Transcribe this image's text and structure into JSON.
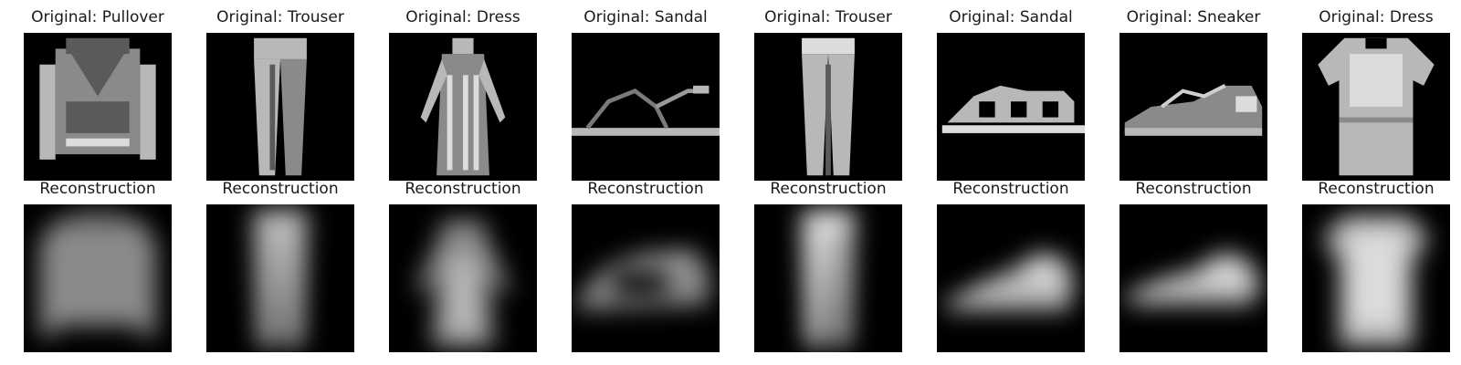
{
  "columns": [
    {
      "original_title": "Original: Pullover",
      "reconstruction_title": "Reconstruction",
      "item": "pullover"
    },
    {
      "original_title": "Original: Trouser",
      "reconstruction_title": "Reconstruction",
      "item": "trouser"
    },
    {
      "original_title": "Original: Dress",
      "reconstruction_title": "Reconstruction",
      "item": "dress"
    },
    {
      "original_title": "Original: Sandal",
      "reconstruction_title": "Reconstruction",
      "item": "sandal"
    },
    {
      "original_title": "Original: Trouser",
      "reconstruction_title": "Reconstruction",
      "item": "trouser"
    },
    {
      "original_title": "Original: Sandal",
      "reconstruction_title": "Reconstruction",
      "item": "sandal"
    },
    {
      "original_title": "Original: Sneaker",
      "reconstruction_title": "Reconstruction",
      "item": "sneaker"
    },
    {
      "original_title": "Original: Dress",
      "reconstruction_title": "Reconstruction",
      "item": "dress"
    }
  ],
  "colors": {
    "background": "#ffffff",
    "image_background": "#000000",
    "title_text": "#1a1a1a"
  }
}
